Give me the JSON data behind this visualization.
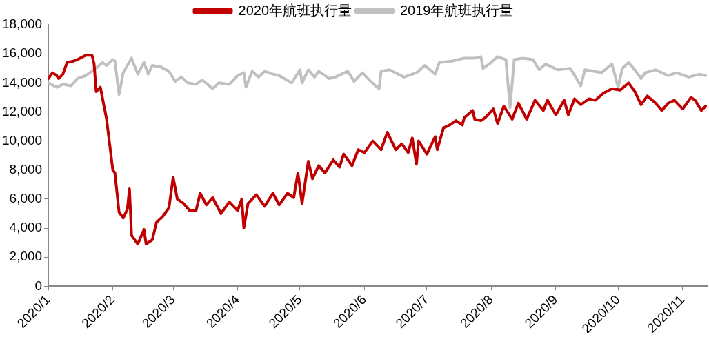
{
  "chart_data": {
    "type": "line",
    "legend": "top",
    "grid": false,
    "marker": "none",
    "line_style": "solid",
    "xlim": [
      "2020-01-01",
      "2020-11-13"
    ],
    "xticks": [
      {
        "value": "2020-01-01",
        "label": "2020/1"
      },
      {
        "value": "2020-02-01",
        "label": "2020/2"
      },
      {
        "value": "2020-03-01",
        "label": "2020/3"
      },
      {
        "value": "2020-04-01",
        "label": "2020/4"
      },
      {
        "value": "2020-05-01",
        "label": "2020/5"
      },
      {
        "value": "2020-06-01",
        "label": "2020/6"
      },
      {
        "value": "2020-07-01",
        "label": "2020/7"
      },
      {
        "value": "2020-08-01",
        "label": "2020/8"
      },
      {
        "value": "2020-09-01",
        "label": "2020/9"
      },
      {
        "value": "2020-10-01",
        "label": "2020/10"
      },
      {
        "value": "2020-11-01",
        "label": "2020/11"
      }
    ],
    "ylim": [
      0,
      18000
    ],
    "yticks": [
      {
        "value": 0,
        "label": "0"
      },
      {
        "value": 2000,
        "label": "2,000"
      },
      {
        "value": 4000,
        "label": "4,000"
      },
      {
        "value": 6000,
        "label": "6,000"
      },
      {
        "value": 8000,
        "label": "8,000"
      },
      {
        "value": 10000,
        "label": "10,000"
      },
      {
        "value": 12000,
        "label": "12,000"
      },
      {
        "value": 14000,
        "label": "14,000"
      },
      {
        "value": 16000,
        "label": "16,000"
      },
      {
        "value": 18000,
        "label": "18,000"
      }
    ],
    "series": [
      {
        "name": "2020年航班执行量",
        "color": "#c00000",
        "x": [
          "2020-01-01",
          "2020-01-03",
          "2020-01-05",
          "2020-01-06",
          "2020-01-08",
          "2020-01-10",
          "2020-01-13",
          "2020-01-15",
          "2020-01-19",
          "2020-01-22",
          "2020-01-23",
          "2020-01-24",
          "2020-01-26",
          "2020-01-29",
          "2020-02-01",
          "2020-02-02",
          "2020-02-04",
          "2020-02-06",
          "2020-02-08",
          "2020-02-09",
          "2020-02-10",
          "2020-02-13",
          "2020-02-16",
          "2020-02-17",
          "2020-02-20",
          "2020-02-22",
          "2020-02-25",
          "2020-02-28",
          "2020-03-01",
          "2020-03-03",
          "2020-03-06",
          "2020-03-09",
          "2020-03-12",
          "2020-03-14",
          "2020-03-17",
          "2020-03-20",
          "2020-03-24",
          "2020-03-28",
          "2020-04-01",
          "2020-04-03",
          "2020-04-04",
          "2020-04-06",
          "2020-04-10",
          "2020-04-14",
          "2020-04-18",
          "2020-04-21",
          "2020-04-25",
          "2020-04-28",
          "2020-04-30",
          "2020-05-02",
          "2020-05-05",
          "2020-05-07",
          "2020-05-10",
          "2020-05-13",
          "2020-05-17",
          "2020-05-20",
          "2020-05-22",
          "2020-05-26",
          "2020-05-29",
          "2020-06-01",
          "2020-06-05",
          "2020-06-09",
          "2020-06-12",
          "2020-06-16",
          "2020-06-19",
          "2020-06-22",
          "2020-06-24",
          "2020-06-26",
          "2020-06-27",
          "2020-07-01",
          "2020-07-05",
          "2020-07-06",
          "2020-07-09",
          "2020-07-12",
          "2020-07-15",
          "2020-07-18",
          "2020-07-19",
          "2020-07-23",
          "2020-07-24",
          "2020-07-27",
          "2020-07-29",
          "2020-08-02",
          "2020-08-04",
          "2020-08-07",
          "2020-08-11",
          "2020-08-14",
          "2020-08-18",
          "2020-08-22",
          "2020-08-26",
          "2020-08-28",
          "2020-09-01",
          "2020-09-05",
          "2020-09-07",
          "2020-09-10",
          "2020-09-13",
          "2020-09-17",
          "2020-09-20",
          "2020-09-24",
          "2020-09-28",
          "2020-10-02",
          "2020-10-06",
          "2020-10-09",
          "2020-10-12",
          "2020-10-15",
          "2020-10-19",
          "2020-10-22",
          "2020-10-25",
          "2020-10-28",
          "2020-11-01",
          "2020-11-05",
          "2020-11-07",
          "2020-11-10",
          "2020-11-12"
        ],
        "values": [
          14300,
          14700,
          14500,
          14300,
          14600,
          15400,
          15500,
          15600,
          15900,
          15900,
          15300,
          13400,
          13700,
          11500,
          8000,
          7800,
          5100,
          4700,
          5300,
          6700,
          3500,
          2900,
          3900,
          2900,
          3200,
          4400,
          4800,
          5400,
          7500,
          6000,
          5700,
          5200,
          5200,
          6400,
          5600,
          6100,
          5000,
          5800,
          5200,
          6000,
          4000,
          5700,
          6300,
          5500,
          6400,
          5600,
          6400,
          6100,
          7800,
          5700,
          8600,
          7400,
          8300,
          7800,
          8700,
          8200,
          9100,
          8300,
          9400,
          9200,
          10000,
          9400,
          10600,
          9400,
          9800,
          9200,
          10200,
          8400,
          10000,
          9100,
          10300,
          9400,
          10900,
          11100,
          11400,
          11100,
          11600,
          12100,
          11500,
          11400,
          11600,
          12200,
          11200,
          12400,
          11500,
          12600,
          11500,
          12800,
          12100,
          12800,
          11800,
          12800,
          11800,
          12900,
          12500,
          12900,
          12800,
          13300,
          13600,
          13500,
          14000,
          13400,
          12500,
          13100,
          12600,
          12100,
          12600,
          12800,
          12200,
          13000,
          12800,
          12100,
          12400
        ]
      },
      {
        "name": "2019年航班执行量",
        "color": "#c0c0c0",
        "x": [
          "2020-01-01",
          "2020-01-05",
          "2020-01-08",
          "2020-01-12",
          "2020-01-15",
          "2020-01-19",
          "2020-01-23",
          "2020-01-27",
          "2020-01-29",
          "2020-02-01",
          "2020-02-02",
          "2020-02-04",
          "2020-02-06",
          "2020-02-10",
          "2020-02-13",
          "2020-02-16",
          "2020-02-18",
          "2020-02-20",
          "2020-02-24",
          "2020-02-28",
          "2020-03-02",
          "2020-03-05",
          "2020-03-08",
          "2020-03-12",
          "2020-03-15",
          "2020-03-20",
          "2020-03-23",
          "2020-03-28",
          "2020-04-01",
          "2020-04-04",
          "2020-04-05",
          "2020-04-08",
          "2020-04-11",
          "2020-04-14",
          "2020-04-18",
          "2020-04-21",
          "2020-04-27",
          "2020-05-01",
          "2020-05-02",
          "2020-05-05",
          "2020-05-08",
          "2020-05-10",
          "2020-05-15",
          "2020-05-18",
          "2020-05-24",
          "2020-05-27",
          "2020-05-31",
          "2020-06-04",
          "2020-06-08",
          "2020-06-09",
          "2020-06-13",
          "2020-06-20",
          "2020-06-26",
          "2020-06-30",
          "2020-07-05",
          "2020-07-07",
          "2020-07-13",
          "2020-07-19",
          "2020-07-24",
          "2020-07-27",
          "2020-07-28",
          "2020-07-31",
          "2020-08-04",
          "2020-08-08",
          "2020-08-10",
          "2020-08-12",
          "2020-08-16",
          "2020-08-21",
          "2020-08-24",
          "2020-08-27",
          "2020-09-02",
          "2020-09-08",
          "2020-09-13",
          "2020-09-15",
          "2020-09-23",
          "2020-09-28",
          "2020-10-01",
          "2020-10-03",
          "2020-10-06",
          "2020-10-09",
          "2020-10-12",
          "2020-10-14",
          "2020-10-19",
          "2020-10-25",
          "2020-10-29",
          "2020-11-04",
          "2020-11-09",
          "2020-11-12"
        ],
        "values": [
          14000,
          13700,
          13900,
          13800,
          14300,
          14500,
          14900,
          15400,
          15200,
          15600,
          15500,
          13200,
          14700,
          15700,
          14600,
          15400,
          14600,
          15200,
          15100,
          14800,
          14100,
          14400,
          14000,
          13900,
          14200,
          13600,
          14000,
          13900,
          14500,
          14700,
          13700,
          14800,
          14400,
          14800,
          14600,
          14500,
          14000,
          14900,
          14000,
          14900,
          14400,
          14800,
          14300,
          14400,
          14800,
          14100,
          14700,
          14100,
          13600,
          14800,
          14900,
          14400,
          14700,
          15200,
          14600,
          15400,
          15500,
          15700,
          15700,
          15800,
          15000,
          15300,
          15800,
          15600,
          12300,
          15600,
          15700,
          15600,
          14900,
          15300,
          14900,
          15000,
          13800,
          14900,
          14700,
          15300,
          13700,
          15000,
          15400,
          14900,
          14300,
          14700,
          14900,
          14500,
          14700,
          14400,
          14600,
          14500
        ]
      }
    ]
  }
}
